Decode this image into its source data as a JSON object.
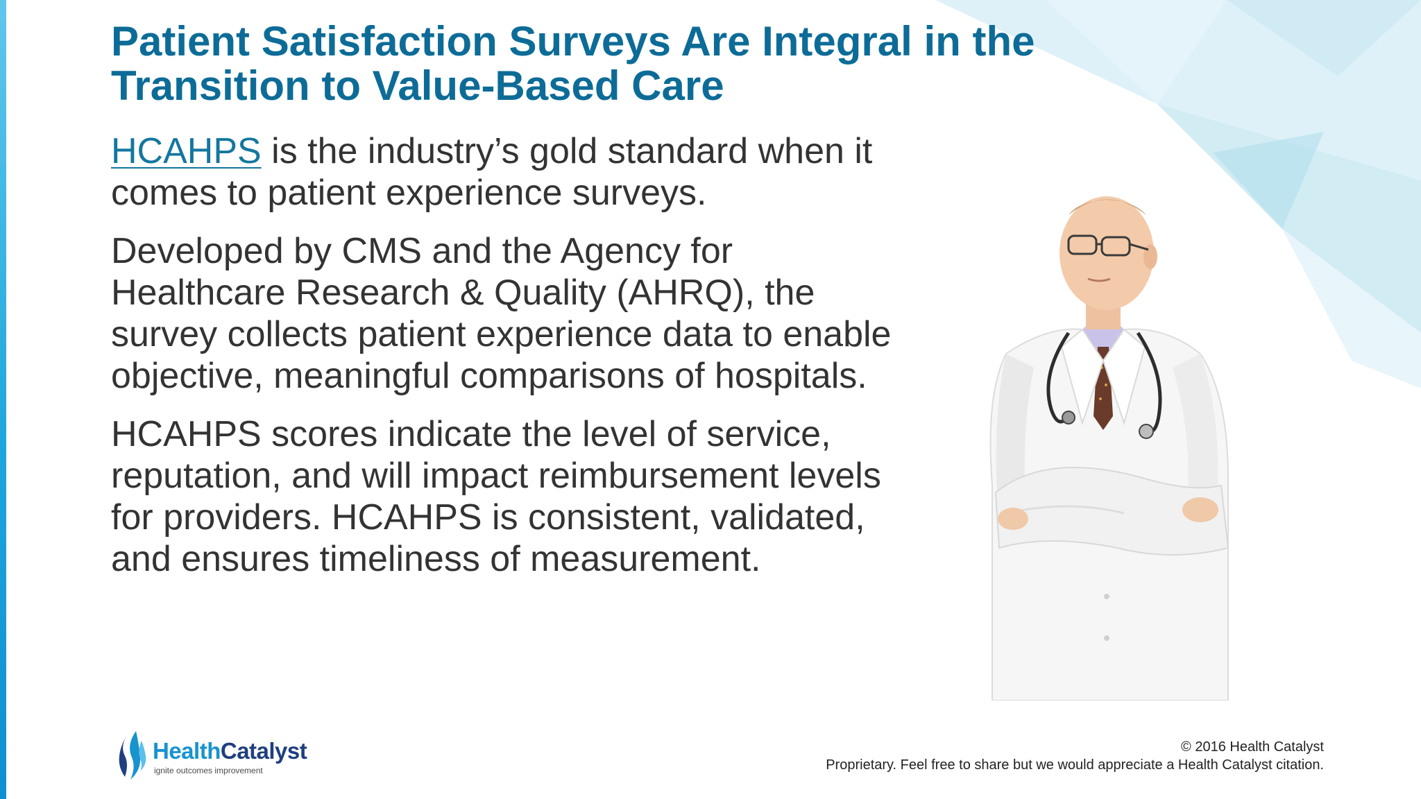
{
  "slide": {
    "title_line1": "Patient Satisfaction Surveys Are Integral in the",
    "title_line2": "Transition to Value-Based Care",
    "paragraphs": {
      "p1_link": "HCAHPS",
      "p1_line1_rest": " is the industry’s gold standard when it",
      "p1_line2": "comes to patient experience surveys.",
      "p2_line1": "Developed by CMS and the Agency for",
      "p2_line2": "Healthcare Research & Quality (AHRQ), the",
      "p2_line3": "survey collects patient experience data to enable",
      "p2_line4": "objective, meaningful comparisons of hospitals.",
      "p3_line1": "HCAHPS scores indicate the level of service,",
      "p3_line2": "reputation, and will impact reimbursement levels",
      "p3_line3": "for providers. HCAHPS is consistent, validated,",
      "p3_line4": "and ensures timeliness of measurement."
    }
  },
  "logo": {
    "word_part1": "Health",
    "word_part2": "Catalyst",
    "tagline": "ignite outcomes improvement"
  },
  "footer": {
    "copyright": "© 2016 Health Catalyst",
    "notice": "Proprietary. Feel free to share but we would appreciate a Health Catalyst citation."
  },
  "image": {
    "subject": "doctor-in-white-coat-with-stethoscope"
  },
  "colors": {
    "title": "#0d6c97",
    "body": "#333333",
    "link": "#13779f",
    "accent": "#1fa6dc",
    "logo_health": "#1793cf",
    "logo_catalyst": "#1f3f7e"
  }
}
